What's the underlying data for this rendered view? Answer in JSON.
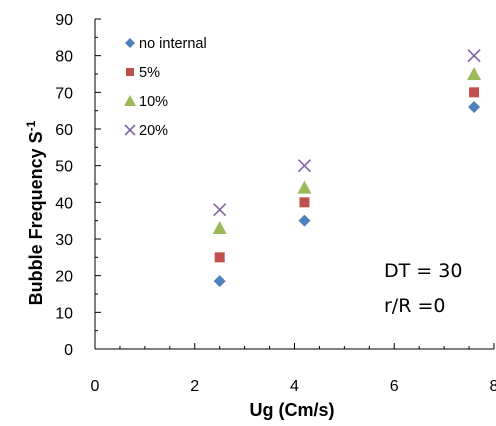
{
  "chart_data": {
    "type": "scatter",
    "xlabel": "Ug (Cm/s)",
    "ylabel": "Bubble Frequency S",
    "ylabel_superscript": "-1",
    "xlim": [
      0,
      8
    ],
    "ylim": [
      0,
      90
    ],
    "xticks": [
      "0",
      "2",
      "4",
      "6",
      "8"
    ],
    "yticks": [
      "0",
      "10",
      "20",
      "30",
      "40",
      "50",
      "60",
      "70",
      "80",
      "90"
    ],
    "grid": false,
    "legend_position": "top-left",
    "annotations": [
      "DT = 30",
      "r/R =0"
    ],
    "series": [
      {
        "name": "no internal",
        "marker": "diamond",
        "color": "#4f81bd",
        "points": [
          {
            "x": 2.5,
            "y": 18.5
          },
          {
            "x": 4.2,
            "y": 35
          },
          {
            "x": 7.6,
            "y": 66
          }
        ]
      },
      {
        "name": "5%",
        "marker": "square",
        "color": "#c0504d",
        "points": [
          {
            "x": 2.5,
            "y": 25
          },
          {
            "x": 4.2,
            "y": 40
          },
          {
            "x": 7.6,
            "y": 70
          }
        ]
      },
      {
        "name": "10%",
        "marker": "triangle",
        "color": "#9bbb59",
        "points": [
          {
            "x": 2.5,
            "y": 33
          },
          {
            "x": 4.2,
            "y": 44
          },
          {
            "x": 7.6,
            "y": 75
          }
        ]
      },
      {
        "name": "20%",
        "marker": "x",
        "color": "#8064a2",
        "points": [
          {
            "x": 2.5,
            "y": 38
          },
          {
            "x": 4.2,
            "y": 50
          },
          {
            "x": 7.6,
            "y": 80
          }
        ]
      }
    ]
  }
}
